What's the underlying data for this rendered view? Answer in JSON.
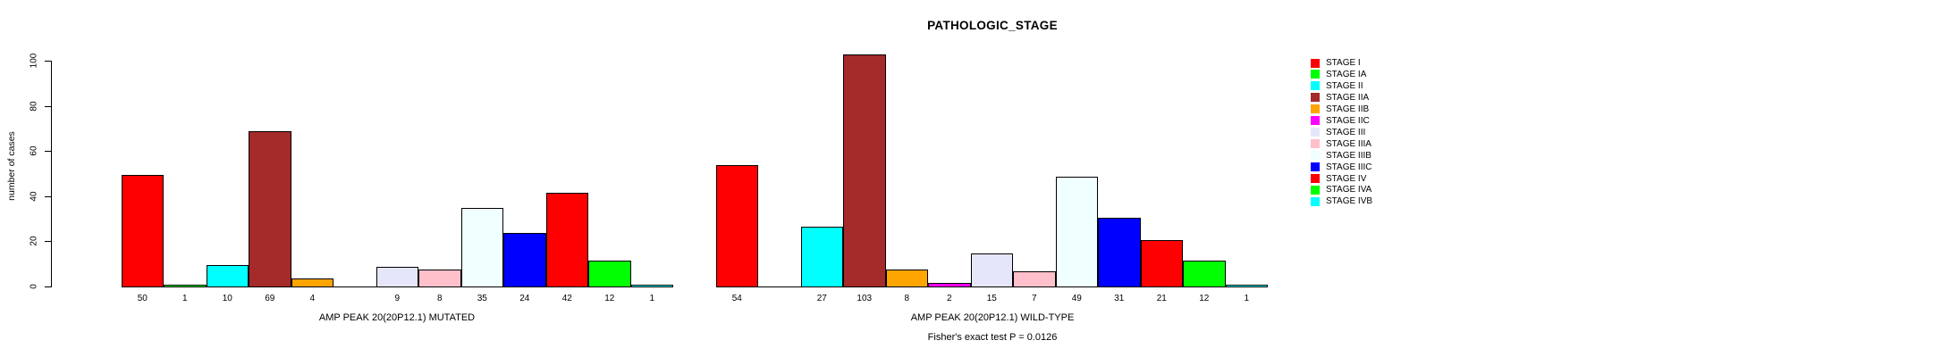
{
  "title": "PATHOLOGIC_STAGE",
  "ylabel": "number of cases",
  "footer": "Fisher's exact test P = 0.0126",
  "chart_data": {
    "type": "bar",
    "title": "PATHOLOGIC_STAGE",
    "ylabel": "number of cases",
    "ylim": [
      0,
      100
    ],
    "yticks": [
      0,
      20,
      40,
      60,
      80,
      100
    ],
    "grid": false,
    "legend_position": "right",
    "bar_value_labels": true,
    "categories": [
      "STAGE I",
      "STAGE IA",
      "STAGE II",
      "STAGE IIA",
      "STAGE IIB",
      "STAGE IIC",
      "STAGE III",
      "STAGE IIIA",
      "STAGE IIIB",
      "STAGE IIIC",
      "STAGE IV",
      "STAGE IVA",
      "STAGE IVB"
    ],
    "colors": [
      "#FF0000",
      "#00FF00",
      "#00FFFF",
      "#A52A2A",
      "#FFA500",
      "#FF00FF",
      "#E6E6FA",
      "#FFC0CB",
      "#F0FFFF",
      "#0000FF",
      "#FF0000",
      "#00FF00",
      "#00FFFF"
    ],
    "series": [
      {
        "name": "AMP PEAK 20(20P12.1) MUTATED",
        "values": [
          50,
          1,
          10,
          69,
          4,
          0,
          9,
          8,
          35,
          24,
          42,
          12,
          1
        ]
      },
      {
        "name": "AMP PEAK 20(20P12.1) WILD-TYPE",
        "values": [
          54,
          0,
          27,
          103,
          8,
          2,
          15,
          7,
          49,
          31,
          21,
          12,
          1
        ]
      }
    ],
    "annotation": "Fisher's exact test P = 0.0126"
  }
}
